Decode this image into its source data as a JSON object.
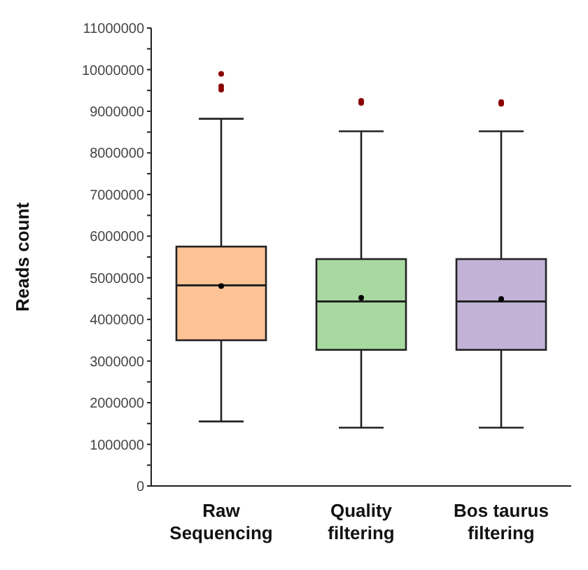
{
  "chart_data": {
    "type": "box",
    "ylabel": "Reads count",
    "categories": [
      "Raw Sequencing",
      "Quality filtering",
      "Bos taurus filtering"
    ],
    "colors": [
      "#fdc395",
      "#a8d9a0",
      "#c2b3d6"
    ],
    "boxes": [
      {
        "low": 1550000,
        "q1": 3500000,
        "median": 4820000,
        "q3": 5750000,
        "high": 8820000,
        "mean": 4800000,
        "outliers": [
          9900000,
          9600000,
          9520000
        ]
      },
      {
        "low": 1400000,
        "q1": 3270000,
        "median": 4430000,
        "q3": 5450000,
        "high": 8520000,
        "mean": 4520000,
        "outliers": [
          9250000,
          9200000
        ]
      },
      {
        "low": 1400000,
        "q1": 3270000,
        "median": 4430000,
        "q3": 5450000,
        "high": 8520000,
        "mean": 4490000,
        "outliers": [
          9220000,
          9180000
        ]
      }
    ],
    "ylim": [
      0,
      11000000
    ],
    "yticks": [
      0,
      {
        "value": 500000,
        "label": null
      },
      1000000,
      {
        "value": 1500000,
        "label": null
      },
      2000000,
      {
        "value": 2500000,
        "label": null
      },
      3000000,
      {
        "value": 3500000,
        "label": null
      },
      4000000,
      {
        "value": 4500000,
        "label": null
      },
      5000000,
      {
        "value": 5500000,
        "label": null
      },
      6000000,
      {
        "value": 6500000,
        "label": null
      },
      7000000,
      {
        "value": 7500000,
        "label": null
      },
      8000000,
      {
        "value": 8500000,
        "label": null
      },
      9000000,
      {
        "value": 9500000,
        "label": null
      },
      10000000,
      {
        "value": 10500000,
        "label": null
      },
      11000000
    ],
    "grid": false,
    "legend": false
  }
}
